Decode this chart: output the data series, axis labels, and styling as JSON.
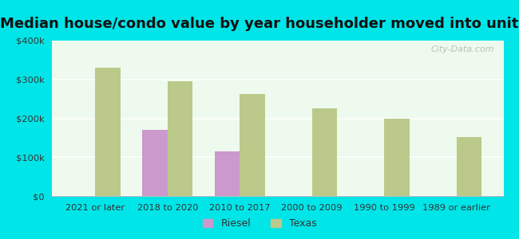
{
  "title": "Median house/condo value by year householder moved into unit",
  "categories": [
    "2021 or later",
    "2018 to 2020",
    "2010 to 2017",
    "2000 to 2009",
    "1990 to 1999",
    "1989 or earlier"
  ],
  "riesel_values": [
    0,
    170000,
    115000,
    0,
    0,
    0
  ],
  "texas_values": [
    330000,
    295000,
    262000,
    225000,
    198000,
    152000
  ],
  "riesel_color": "#cc99cc",
  "texas_color": "#bbc98a",
  "background_color": "#edfaed",
  "outer_background": "#00e5e8",
  "ylim": [
    0,
    400000
  ],
  "yticks": [
    0,
    100000,
    200000,
    300000,
    400000
  ],
  "legend_labels": [
    "Riesel",
    "Texas"
  ],
  "title_fontsize": 13,
  "bar_width": 0.35,
  "watermark": "City-Data.com",
  "grid_color": "#d0e8d0",
  "spine_color": "#bbbbbb"
}
